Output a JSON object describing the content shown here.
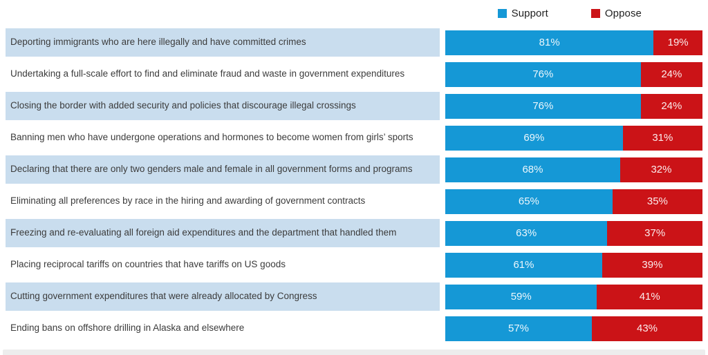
{
  "legend": {
    "support_label": "Support",
    "oppose_label": "Oppose"
  },
  "colors": {
    "support": "#1598d6",
    "oppose": "#cb1317",
    "row_alt_bg": "#c9ddee"
  },
  "chart_data": {
    "type": "bar",
    "orientation": "horizontal-stacked",
    "value_format": "percent",
    "xlim": [
      0,
      100
    ],
    "legend_position": "top",
    "categories": [
      "Deporting immigrants who are here illegally and have committed crimes",
      "Undertaking a full-scale effort to find and eliminate fraud and waste in government expenditures",
      "Closing the border with added security and policies that discourage illegal crossings",
      "Banning men who have undergone operations and hormones to become women from girls’ sports",
      "Declaring that there are only two genders male and female in all government forms and programs",
      "Eliminating all preferences by race in the hiring and awarding of government contracts",
      "Freezing and re-evaluating all foreign aid expenditures and the department that handled them",
      "Placing reciprocal tariffs on countries that have tariffs on US goods",
      "Cutting government expenditures that were already allocated by Congress",
      "Ending bans on offshore drilling in Alaska and elsewhere"
    ],
    "series": [
      {
        "name": "Support",
        "color": "#1598d6",
        "values": [
          81,
          76,
          76,
          69,
          68,
          65,
          63,
          61,
          59,
          57
        ]
      },
      {
        "name": "Oppose",
        "color": "#cb1317",
        "values": [
          19,
          24,
          24,
          31,
          32,
          35,
          37,
          39,
          41,
          43
        ]
      }
    ]
  }
}
